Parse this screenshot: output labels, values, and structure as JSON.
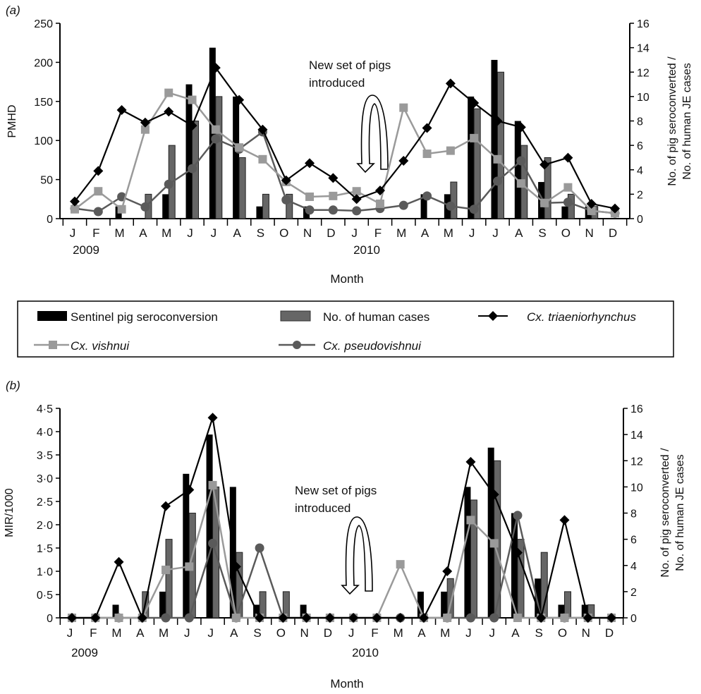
{
  "legend": {
    "items": [
      {
        "label": "Sentinel pig seroconversion",
        "kind": "bar",
        "color": "#000000"
      },
      {
        "label": "No. of human cases",
        "kind": "bar",
        "color": "#666666"
      },
      {
        "label": "Cx. triaeniorhynchus",
        "kind": "line-diamond",
        "color": "#000000"
      },
      {
        "label": "Cx. vishnui",
        "kind": "line-square",
        "color": "#9a9a9a"
      },
      {
        "label": "Cx. pseudovishnui",
        "kind": "line-circle",
        "color": "#5a5a5a"
      }
    ],
    "placement": "between panels"
  },
  "chart_data": [
    {
      "panel_label": "(a)",
      "type": "bar+line",
      "categories": [
        "J",
        "F",
        "M",
        "A",
        "M",
        "J",
        "J",
        "A",
        "S",
        "O",
        "N",
        "D",
        "J",
        "F",
        "M",
        "A",
        "M",
        "J",
        "J",
        "A",
        "S",
        "O",
        "N",
        "D"
      ],
      "year_labels": [
        "2009",
        "2010"
      ],
      "xlabel": "Month",
      "ylabel": "PMHD",
      "ylabel_right": [
        "No. of pig seroconverted /",
        "No. of human JE cases"
      ],
      "ylim": [
        0,
        250
      ],
      "yticks": [
        "0",
        "50",
        "100",
        "150",
        "200",
        "250"
      ],
      "ylim_right": [
        0,
        16
      ],
      "yticks_right": [
        "0",
        "2",
        "4",
        "6",
        "8",
        "10",
        "12",
        "14",
        "16"
      ],
      "annotation": [
        "New set of pigs",
        "introduced"
      ],
      "grid": false,
      "bar_series": [
        {
          "name": "Sentinel pig seroconversion",
          "axis": "right",
          "values": [
            0,
            0,
            1,
            0,
            2,
            11,
            14,
            10,
            1,
            0,
            1,
            0,
            0,
            0,
            0,
            2,
            2,
            10,
            13,
            8,
            3,
            1,
            1,
            0
          ]
        },
        {
          "name": "No. of human cases",
          "axis": "right",
          "values": [
            0,
            0,
            0,
            2,
            6,
            8,
            10,
            5,
            2,
            2,
            0,
            0,
            0,
            0,
            0,
            0,
            3,
            9,
            12,
            6,
            5,
            2,
            1,
            0
          ]
        }
      ],
      "line_series": [
        {
          "name": "Cx. triaeniorhynchus",
          "axis": "left",
          "values": [
            22,
            61,
            139,
            123,
            137,
            119,
            193,
            152,
            114,
            49,
            71,
            52,
            25,
            36,
            74,
            116,
            173,
            148,
            125,
            117,
            69,
            78,
            19,
            13
          ]
        },
        {
          "name": "Cx. vishnui",
          "axis": "left",
          "values": [
            12,
            35,
            12,
            114,
            161,
            152,
            114,
            91,
            76,
            47,
            28,
            29,
            35,
            19,
            142,
            83,
            87,
            103,
            76,
            45,
            20,
            40,
            10,
            7
          ]
        },
        {
          "name": "Cx. pseudovishnui",
          "axis": "left",
          "values": [
            13,
            9,
            28,
            15,
            44,
            64,
            102,
            89,
            111,
            24,
            11,
            11,
            10,
            13,
            17,
            29,
            16,
            12,
            48,
            74,
            20,
            21,
            10,
            7
          ]
        }
      ]
    },
    {
      "panel_label": "(b)",
      "type": "bar+line",
      "categories": [
        "J",
        "F",
        "M",
        "A",
        "M",
        "J",
        "J",
        "A",
        "S",
        "O",
        "N",
        "D",
        "J",
        "F",
        "M",
        "A",
        "M",
        "J",
        "J",
        "A",
        "S",
        "O",
        "N",
        "D"
      ],
      "year_labels": [
        "2009",
        "2010"
      ],
      "xlabel": "Month",
      "ylabel": "MIR/1000",
      "ylabel_right": [
        "No. of pig seroconverted /",
        "No. of human JE cases"
      ],
      "ylim": [
        0,
        4.5
      ],
      "yticks": [
        "0",
        "0·5",
        "1·0",
        "1·5",
        "2·0",
        "2·5",
        "3·0",
        "3·5",
        "4·0",
        "4·5"
      ],
      "ylim_right": [
        0,
        16
      ],
      "yticks_right": [
        "0",
        "2",
        "4",
        "6",
        "8",
        "10",
        "12",
        "14",
        "16"
      ],
      "annotation": [
        "New set of pigs",
        "introduced"
      ],
      "grid": false,
      "bar_series": [
        {
          "name": "Sentinel pig seroconversion",
          "axis": "right",
          "values": [
            0,
            0,
            1,
            0,
            2,
            11,
            14,
            10,
            1,
            0,
            1,
            0,
            0,
            0,
            0,
            2,
            2,
            10,
            13,
            8,
            3,
            1,
            1,
            0
          ]
        },
        {
          "name": "No. of human cases",
          "axis": "right",
          "values": [
            0,
            0,
            0,
            2,
            6,
            8,
            10,
            5,
            2,
            2,
            0,
            0,
            0,
            0,
            0,
            0,
            3,
            9,
            12,
            6,
            5,
            2,
            1,
            0
          ]
        }
      ],
      "line_series": [
        {
          "name": "Cx. triaeniorhynchus",
          "axis": "left",
          "values": [
            0,
            0,
            1.2,
            0,
            2.4,
            2.75,
            4.3,
            1.1,
            0,
            0,
            0,
            0,
            0,
            0,
            0,
            0,
            1.0,
            3.35,
            2.65,
            1.4,
            0,
            2.1,
            0,
            0
          ]
        },
        {
          "name": "Cx. vishnui",
          "axis": "left",
          "values": [
            0,
            0,
            0,
            0,
            1.03,
            1.1,
            2.85,
            0,
            0,
            0,
            0,
            0,
            0,
            0,
            1.15,
            0,
            0,
            2.1,
            1.6,
            0,
            0,
            0,
            0,
            0
          ]
        },
        {
          "name": "Cx. pseudovishnui",
          "axis": "left",
          "values": [
            0,
            0,
            0,
            0,
            0,
            0,
            1.6,
            0,
            1.5,
            0,
            0,
            0,
            0,
            0,
            0,
            0,
            0,
            0,
            0,
            2.2,
            0,
            0,
            0,
            0
          ]
        }
      ]
    }
  ]
}
